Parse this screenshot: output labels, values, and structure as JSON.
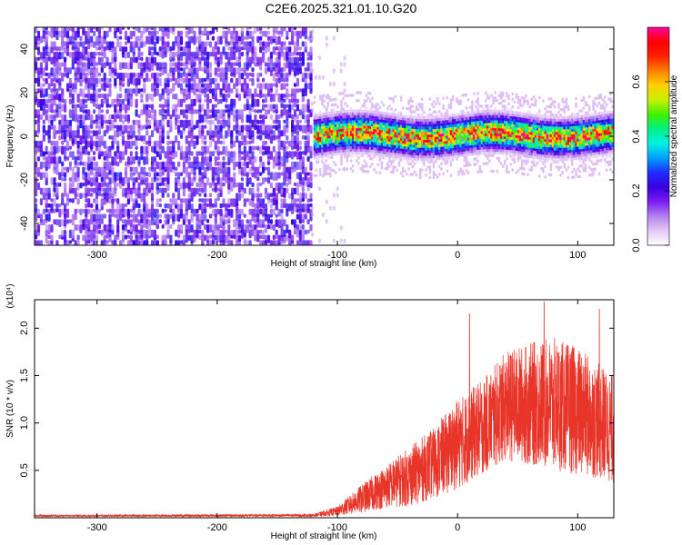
{
  "title": "C2E6.2025.321.01.10.G20",
  "chart_data": [
    {
      "type": "heatmap",
      "title": "C2E6.2025.321.01.10.G20",
      "xlabel": "Height of straight line (km)",
      "ylabel": "Frequency (Hz)",
      "xlim": [
        -352,
        130
      ],
      "ylim": [
        -50,
        50
      ],
      "xticks": [
        -300,
        -200,
        -100,
        0,
        100
      ],
      "yticks": [
        -40,
        -20,
        0,
        20,
        40
      ],
      "grid": false,
      "colorbar": {
        "label": "Normalized spectral amplitude",
        "range": [
          0.0,
          0.8
        ],
        "ticks": [
          0.0,
          0.2,
          0.4,
          0.6
        ],
        "colormap": [
          "#ffffff",
          "#e4c8f4",
          "#b482f0",
          "#7a1cf0",
          "#3a00e0",
          "#1e2cff",
          "#00a0ff",
          "#00f0e0",
          "#00f088",
          "#40f000",
          "#c8f000",
          "#ffd000",
          "#ff8000",
          "#ff2000",
          "#ff0000",
          "#ff00a0"
        ]
      },
      "regions": [
        {
          "name": "noise",
          "x_range": [
            -352,
            -122
          ],
          "freq_range": [
            -50,
            50
          ],
          "amplitude": [
            0.1,
            0.25
          ]
        },
        {
          "name": "signal",
          "x_range": [
            -120,
            130
          ],
          "center_freq_hz": 0,
          "band_halfwidth_hz": 6,
          "peak_amplitude": 0.75
        }
      ]
    },
    {
      "type": "line",
      "xlabel": "Height of straight line (km)",
      "ylabel": "SNR (10 * v/v)",
      "y_multiplier": "(x10⁴)",
      "xlim": [
        -352,
        130
      ],
      "ylim": [
        0,
        2.3
      ],
      "xticks": [
        -300,
        -200,
        -100,
        0,
        100
      ],
      "yticks": [
        0.5,
        1.0,
        1.5,
        2.0
      ],
      "color": "#e8352a",
      "envelope_x": [
        -352,
        -120,
        -100,
        -80,
        -60,
        -40,
        -20,
        0,
        20,
        40,
        60,
        80,
        100,
        120,
        130
      ],
      "envelope_upper": [
        0.03,
        0.04,
        0.12,
        0.35,
        0.55,
        0.75,
        0.95,
        1.25,
        1.45,
        1.75,
        1.85,
        1.9,
        1.8,
        1.6,
        1.5
      ],
      "envelope_lower": [
        0.01,
        0.01,
        0.02,
        0.05,
        0.1,
        0.12,
        0.2,
        0.3,
        0.45,
        0.6,
        0.55,
        0.5,
        0.45,
        0.4,
        0.35
      ],
      "notable_peaks": [
        {
          "x": 10,
          "y": 2.15
        },
        {
          "x": 72,
          "y": 2.28
        },
        {
          "x": 118,
          "y": 2.2
        }
      ]
    }
  ],
  "tick_labels": {
    "top_x": [
      "-300",
      "-200",
      "-100",
      "0",
      "100"
    ],
    "top_y": [
      "-40",
      "-20",
      "0",
      "20",
      "40"
    ],
    "bottom_x": [
      "-300",
      "-200",
      "-100",
      "0",
      "100"
    ],
    "bottom_y": [
      "0.5",
      "1.0",
      "1.5",
      "2.0"
    ],
    "colorbar": [
      "0.0",
      "0.2",
      "0.4",
      "0.6"
    ]
  }
}
